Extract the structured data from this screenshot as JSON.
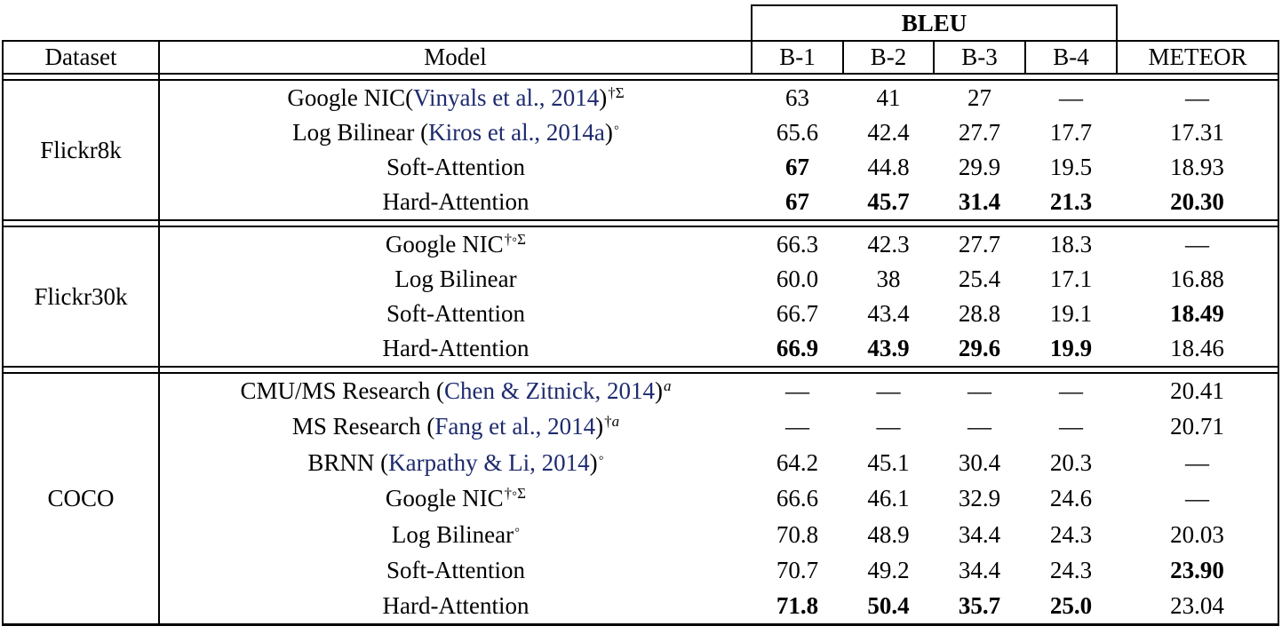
{
  "colors": {
    "background": "#ffffff",
    "text": "#000000",
    "border": "#000000",
    "citation_link": "#1e2b6e"
  },
  "table": {
    "group_label": "BLEU",
    "columns": [
      "Dataset",
      "Model",
      "B-1",
      "B-2",
      "B-3",
      "B-4",
      "METEOR"
    ],
    "missing_value": "—",
    "sections": [
      {
        "dataset": "Flickr8k",
        "rows": [
          {
            "model": {
              "pre": "Google NIC(",
              "cite": "Vinyals et al., 2014",
              "post": ")",
              "sup": "†Σ"
            },
            "scores": [
              {
                "v": "63"
              },
              {
                "v": "41"
              },
              {
                "v": "27"
              },
              {
                "v": "—"
              },
              {
                "v": "—"
              }
            ]
          },
          {
            "model": {
              "pre": "Log Bilinear (",
              "cite": "Kiros et al., 2014a",
              "post": ")",
              "sup": "◦"
            },
            "scores": [
              {
                "v": "65.6"
              },
              {
                "v": "42.4"
              },
              {
                "v": "27.7"
              },
              {
                "v": "17.7"
              },
              {
                "v": "17.31"
              }
            ]
          },
          {
            "model": {
              "pre": "Soft-Attention"
            },
            "scores": [
              {
                "v": "67",
                "b": true
              },
              {
                "v": "44.8"
              },
              {
                "v": "29.9"
              },
              {
                "v": "19.5"
              },
              {
                "v": "18.93"
              }
            ]
          },
          {
            "model": {
              "pre": "Hard-Attention"
            },
            "scores": [
              {
                "v": "67",
                "b": true
              },
              {
                "v": "45.7",
                "b": true
              },
              {
                "v": "31.4",
                "b": true
              },
              {
                "v": "21.3",
                "b": true
              },
              {
                "v": "20.30",
                "b": true
              }
            ]
          }
        ]
      },
      {
        "dataset": "Flickr30k",
        "rows": [
          {
            "model": {
              "pre": "Google NIC",
              "sup": "†◦Σ"
            },
            "scores": [
              {
                "v": "66.3"
              },
              {
                "v": "42.3"
              },
              {
                "v": "27.7"
              },
              {
                "v": "18.3"
              },
              {
                "v": "—"
              }
            ]
          },
          {
            "model": {
              "pre": "Log Bilinear"
            },
            "scores": [
              {
                "v": "60.0"
              },
              {
                "v": "38"
              },
              {
                "v": "25.4"
              },
              {
                "v": "17.1"
              },
              {
                "v": "16.88"
              }
            ]
          },
          {
            "model": {
              "pre": "Soft-Attention"
            },
            "scores": [
              {
                "v": "66.7"
              },
              {
                "v": "43.4"
              },
              {
                "v": "28.8"
              },
              {
                "v": "19.1"
              },
              {
                "v": "18.49",
                "b": true
              }
            ]
          },
          {
            "model": {
              "pre": "Hard-Attention"
            },
            "scores": [
              {
                "v": "66.9",
                "b": true
              },
              {
                "v": "43.9",
                "b": true
              },
              {
                "v": "29.6",
                "b": true
              },
              {
                "v": "19.9",
                "b": true
              },
              {
                "v": "18.46"
              }
            ]
          }
        ]
      },
      {
        "dataset": "COCO",
        "rows": [
          {
            "model": {
              "pre": "CMU/MS Research (",
              "cite": "Chen & Zitnick, 2014",
              "post": ")",
              "sup": "a"
            },
            "scores": [
              {
                "v": "—"
              },
              {
                "v": "—"
              },
              {
                "v": "—"
              },
              {
                "v": "—"
              },
              {
                "v": "20.41"
              }
            ]
          },
          {
            "model": {
              "pre": "MS Research (",
              "cite": "Fang et al., 2014",
              "post": ")",
              "sup": "†a"
            },
            "scores": [
              {
                "v": "—"
              },
              {
                "v": "—"
              },
              {
                "v": "—"
              },
              {
                "v": "—"
              },
              {
                "v": "20.71"
              }
            ]
          },
          {
            "model": {
              "pre": "BRNN (",
              "cite": "Karpathy & Li, 2014",
              "post": ")",
              "sup": "◦"
            },
            "scores": [
              {
                "v": "64.2"
              },
              {
                "v": "45.1"
              },
              {
                "v": "30.4"
              },
              {
                "v": "20.3"
              },
              {
                "v": "—"
              }
            ]
          },
          {
            "model": {
              "pre": "Google NIC",
              "sup": "†◦Σ"
            },
            "scores": [
              {
                "v": "66.6"
              },
              {
                "v": "46.1"
              },
              {
                "v": "32.9"
              },
              {
                "v": "24.6"
              },
              {
                "v": "—"
              }
            ]
          },
          {
            "model": {
              "pre": "Log Bilinear",
              "sup": "◦"
            },
            "scores": [
              {
                "v": "70.8"
              },
              {
                "v": "48.9"
              },
              {
                "v": "34.4"
              },
              {
                "v": "24.3"
              },
              {
                "v": "20.03"
              }
            ]
          },
          {
            "model": {
              "pre": "Soft-Attention"
            },
            "scores": [
              {
                "v": "70.7"
              },
              {
                "v": "49.2"
              },
              {
                "v": "34.4"
              },
              {
                "v": "24.3"
              },
              {
                "v": "23.90",
                "b": true
              }
            ]
          },
          {
            "model": {
              "pre": "Hard-Attention"
            },
            "scores": [
              {
                "v": "71.8",
                "b": true
              },
              {
                "v": "50.4",
                "b": true
              },
              {
                "v": "35.7",
                "b": true
              },
              {
                "v": "25.0",
                "b": true
              },
              {
                "v": "23.04"
              }
            ]
          }
        ]
      }
    ]
  }
}
